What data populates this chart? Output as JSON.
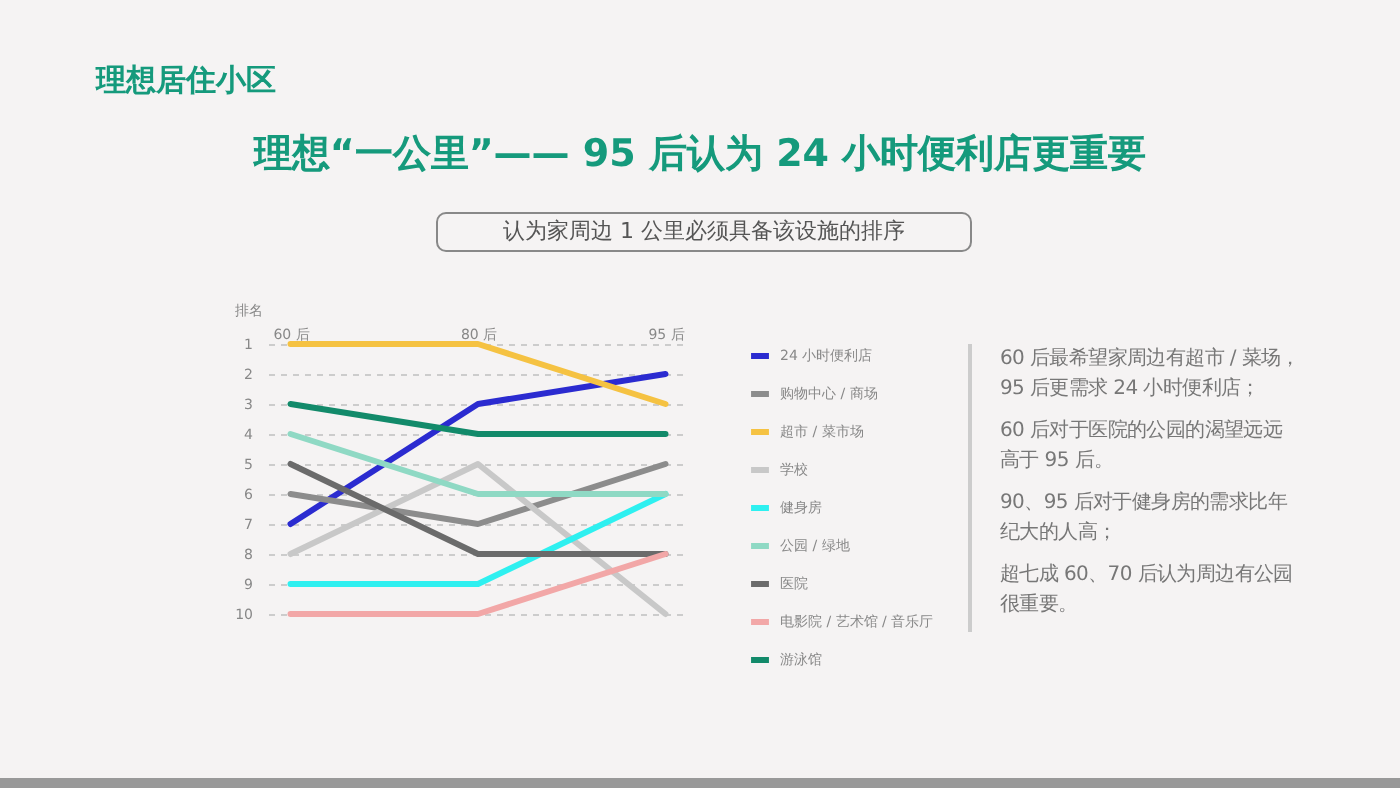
{
  "chart_data": {
    "type": "line",
    "title": "理想“一公里”—— 95 后认为 24 小时便利店更重要",
    "subtitle": "认为家周边 1 公里必须具备该设施的排序",
    "ylabel": "排名",
    "annotations": [
      "理想居住小区",
      "60 后最希望家周边有超市 / 菜场，95 后更需求 24 小时便利店；",
      "60 后对于医院的公园的渴望远远高于 95 后。",
      "90、95 后对于健身房的需求比年纪大的人高；",
      "超七成 60、70 后认为周边有公园很重要。"
    ],
    "categories": [
      "60 后",
      "80 后",
      "95 后"
    ],
    "series": [
      {
        "name": "24 小时便利店",
        "color": "#2b2bd0",
        "values": [
          7,
          3,
          2
        ]
      },
      {
        "name": "购物中心 / 商场",
        "color": "#8c8c8c",
        "values": [
          6,
          7,
          5
        ]
      },
      {
        "name": "超市 / 菜市场",
        "color": "#f5c242",
        "values": [
          1,
          1,
          3
        ]
      },
      {
        "name": "学校",
        "color": "#c8c8c8",
        "values": [
          8,
          5,
          10
        ]
      },
      {
        "name": "健身房",
        "color": "#2ef0f0",
        "values": [
          9,
          9,
          6
        ]
      },
      {
        "name": "公园 / 绿地",
        "color": "#8fd9c4",
        "values": [
          4,
          6,
          6
        ]
      },
      {
        "name": "医院",
        "color": "#6b6b6b",
        "values": [
          5,
          8,
          8
        ]
      },
      {
        "name": "电影院 / 艺术馆 / 音乐厅",
        "color": "#f2a7a7",
        "values": [
          10,
          10,
          8
        ]
      },
      {
        "name": "游泳馆",
        "color": "#128a6a",
        "values": [
          3,
          4,
          4
        ]
      }
    ],
    "ylim": [
      10,
      1
    ],
    "yticks": [
      1,
      2,
      3,
      4,
      5,
      6,
      7,
      8,
      9,
      10
    ],
    "grid": "y",
    "legend": "right",
    "marker": "none",
    "line_style": "solid"
  }
}
